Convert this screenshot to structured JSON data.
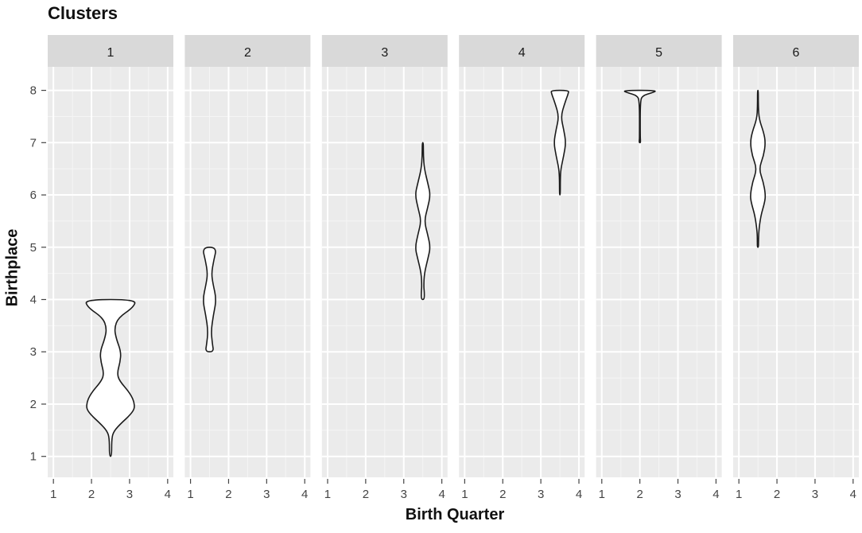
{
  "chart_data": {
    "type": "violin",
    "title": "Clusters",
    "xlabel": "Birth Quarter",
    "ylabel": "Birthplace",
    "x_ticks": [
      1,
      2,
      3,
      4
    ],
    "y_ticks": [
      1,
      2,
      3,
      4,
      5,
      6,
      7,
      8
    ],
    "xlim": [
      0.85,
      4.15
    ],
    "ylim": [
      0.6,
      8.45
    ],
    "grid": true,
    "facets": [
      {
        "label": "1",
        "violin": {
          "center_x": 2.5,
          "profile": [
            [
              1.0,
              0.06
            ],
            [
              1.3,
              0.06
            ],
            [
              1.45,
              0.12
            ],
            [
              1.6,
              0.45
            ],
            [
              1.85,
              1.2
            ],
            [
              2.0,
              1.28
            ],
            [
              2.2,
              1.05
            ],
            [
              2.45,
              0.45
            ],
            [
              2.6,
              0.35
            ],
            [
              2.8,
              0.5
            ],
            [
              3.0,
              0.55
            ],
            [
              3.25,
              0.3
            ],
            [
              3.45,
              0.2
            ],
            [
              3.65,
              0.4
            ],
            [
              3.85,
              1.2
            ],
            [
              4.0,
              1.35
            ]
          ]
        }
      },
      {
        "label": "2",
        "violin": {
          "center_x": 1.5,
          "profile": [
            [
              3.0,
              0.22
            ],
            [
              3.15,
              0.15
            ],
            [
              3.4,
              0.08
            ],
            [
              3.7,
              0.2
            ],
            [
              4.0,
              0.36
            ],
            [
              4.3,
              0.18
            ],
            [
              4.5,
              0.1
            ],
            [
              4.75,
              0.22
            ],
            [
              5.0,
              0.38
            ]
          ]
        }
      },
      {
        "label": "3",
        "violin": {
          "center_x": 3.5,
          "profile": [
            [
              4.0,
              0.08
            ],
            [
              4.15,
              0.08
            ],
            [
              4.25,
              0.05
            ],
            [
              4.5,
              0.08
            ],
            [
              4.8,
              0.28
            ],
            [
              5.0,
              0.4
            ],
            [
              5.25,
              0.25
            ],
            [
              5.5,
              0.08
            ],
            [
              5.75,
              0.25
            ],
            [
              6.0,
              0.4
            ],
            [
              6.2,
              0.28
            ],
            [
              6.5,
              0.08
            ],
            [
              6.75,
              0.03
            ],
            [
              7.0,
              0.03
            ]
          ]
        }
      },
      {
        "label": "4",
        "violin": {
          "center_x": 3.5,
          "profile": [
            [
              6.0,
              0.02
            ],
            [
              6.3,
              0.02
            ],
            [
              6.5,
              0.05
            ],
            [
              6.75,
              0.2
            ],
            [
              7.0,
              0.32
            ],
            [
              7.25,
              0.2
            ],
            [
              7.5,
              0.05
            ],
            [
              7.75,
              0.25
            ],
            [
              7.95,
              0.45
            ],
            [
              8.0,
              0.45
            ]
          ]
        }
      },
      {
        "label": "5",
        "violin": {
          "center_x": 2.0,
          "profile": [
            [
              7.0,
              0.03
            ],
            [
              7.05,
              0.03
            ],
            [
              7.1,
              0.02
            ],
            [
              7.8,
              0.02
            ],
            [
              7.9,
              0.15
            ],
            [
              7.95,
              0.6
            ],
            [
              8.0,
              0.95
            ]
          ]
        }
      },
      {
        "label": "6",
        "violin": {
          "center_x": 1.5,
          "profile": [
            [
              5.0,
              0.03
            ],
            [
              5.1,
              0.03
            ],
            [
              5.3,
              0.04
            ],
            [
              5.6,
              0.15
            ],
            [
              5.85,
              0.35
            ],
            [
              6.0,
              0.4
            ],
            [
              6.25,
              0.28
            ],
            [
              6.5,
              0.05
            ],
            [
              6.75,
              0.3
            ],
            [
              7.0,
              0.4
            ],
            [
              7.2,
              0.3
            ],
            [
              7.45,
              0.06
            ],
            [
              7.7,
              0.02
            ],
            [
              8.0,
              0.02
            ]
          ]
        }
      }
    ]
  }
}
